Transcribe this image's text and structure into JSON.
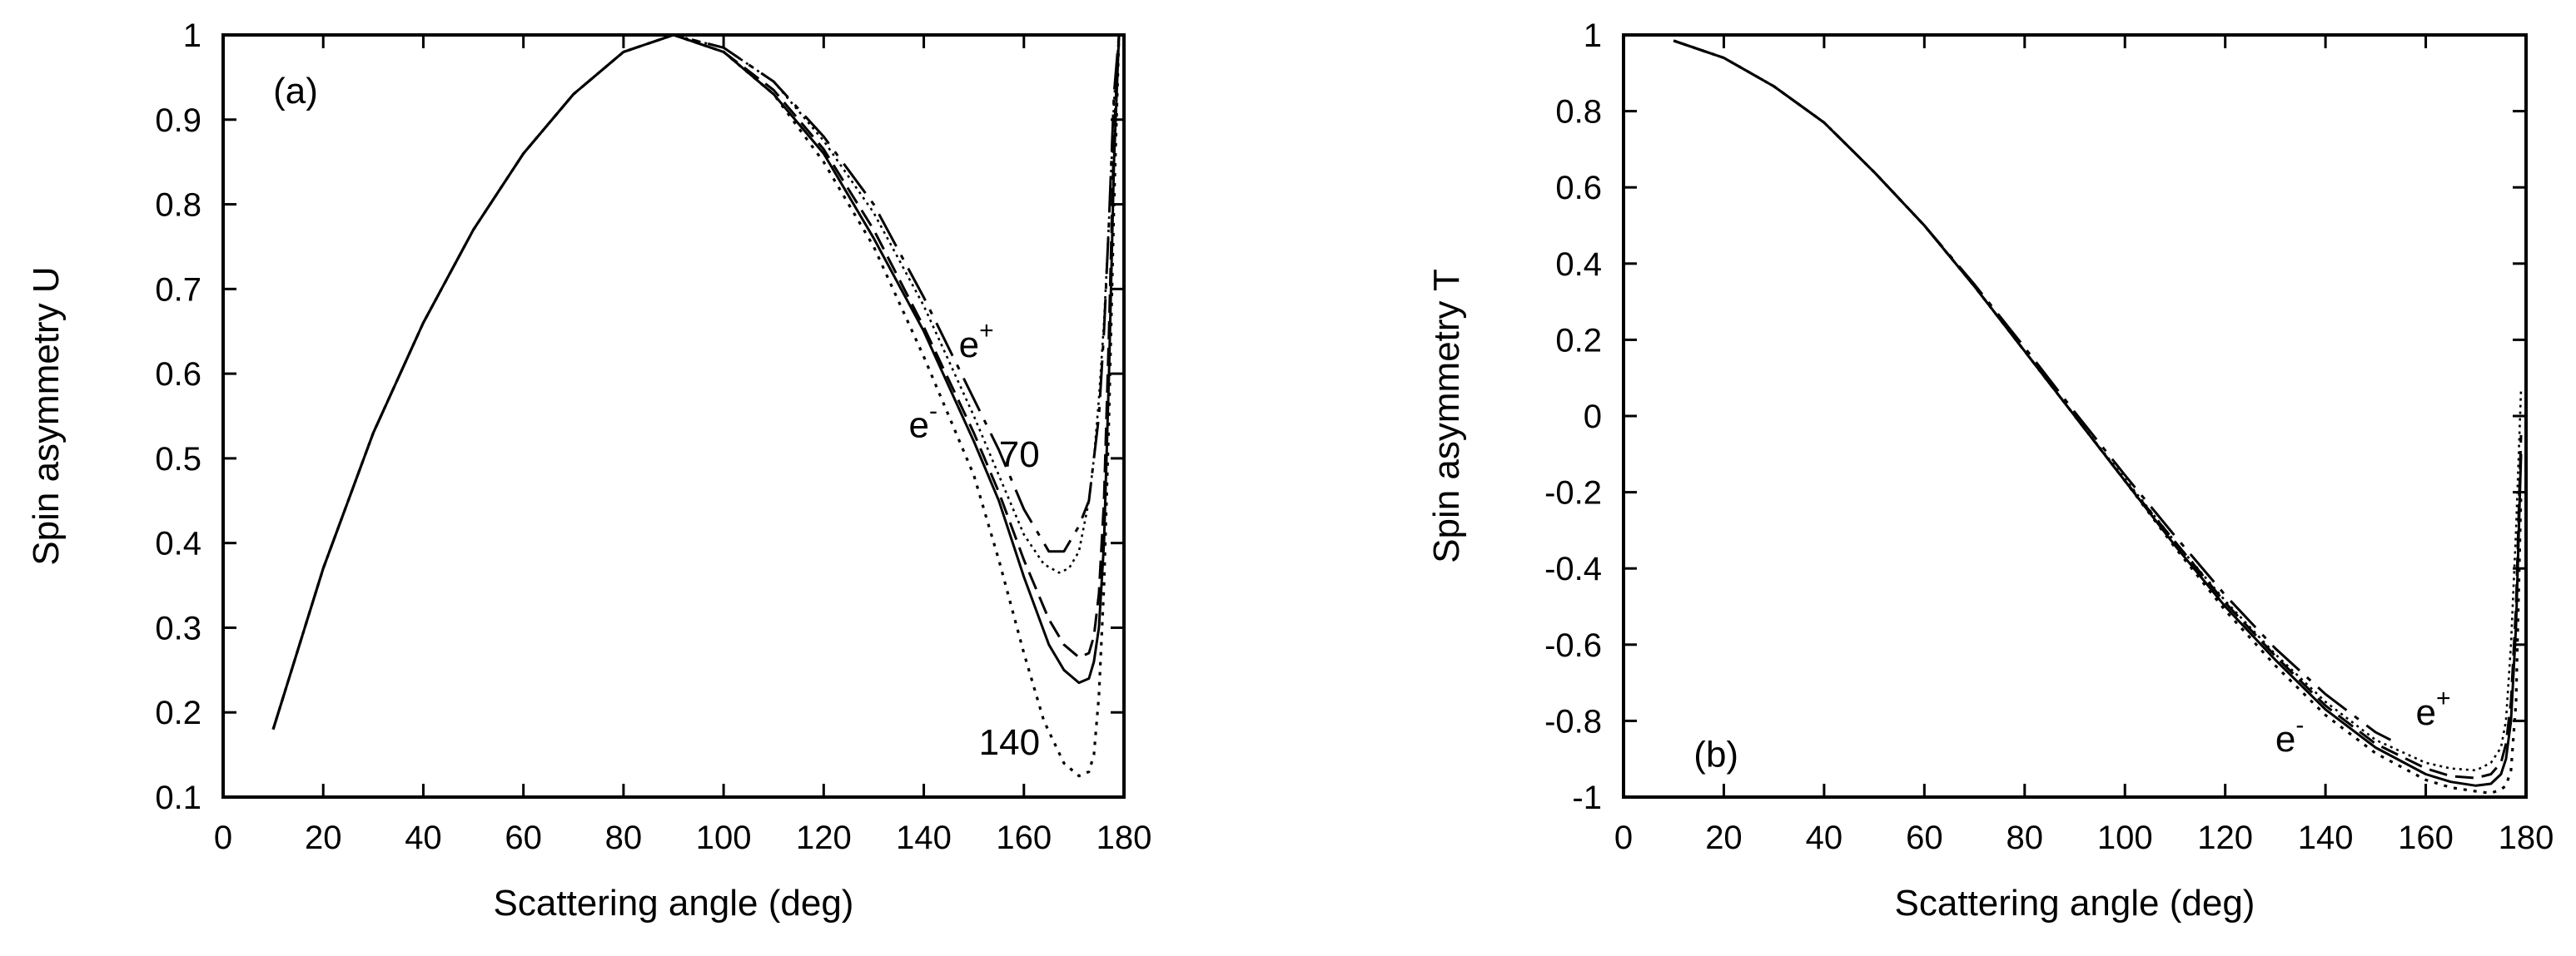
{
  "chart_data": [
    {
      "type": "line",
      "panel_label": "(a)",
      "xlabel": "Scattering angle  (deg)",
      "ylabel": "Spin asymmetry  U",
      "xlim": [
        0,
        180
      ],
      "ylim": [
        0.1,
        1
      ],
      "xticks": [
        0,
        20,
        40,
        60,
        80,
        100,
        120,
        140,
        160,
        180
      ],
      "yticks": [
        0.1,
        0.2,
        0.3,
        0.4,
        0.5,
        0.6,
        0.7,
        0.8,
        0.9,
        1
      ],
      "grid": false,
      "legend": "none",
      "annotations": [
        {
          "text": "e",
          "sup": "+",
          "x": 147,
          "y": 0.62
        },
        {
          "text": "e",
          "sup": "-",
          "x": 137,
          "y": 0.525
        },
        {
          "text": "70",
          "x": 155,
          "y": 0.49
        },
        {
          "text": "140",
          "x": 151,
          "y": 0.15
        }
      ],
      "series": [
        {
          "style": "solid",
          "x": [
            10,
            20,
            30,
            40,
            50,
            60,
            70,
            80,
            90,
            100,
            110,
            120,
            130,
            140,
            150,
            155,
            160,
            165,
            168,
            171,
            173,
            174,
            175,
            176,
            177,
            178,
            179
          ],
          "y": [
            0.18,
            0.37,
            0.53,
            0.66,
            0.77,
            0.86,
            0.93,
            0.98,
            1.0,
            0.98,
            0.93,
            0.86,
            0.76,
            0.65,
            0.52,
            0.45,
            0.36,
            0.28,
            0.25,
            0.235,
            0.24,
            0.26,
            0.3,
            0.4,
            0.6,
            0.85,
            1.0
          ]
        },
        {
          "style": "dashed",
          "x": [
            10,
            20,
            30,
            40,
            50,
            60,
            70,
            80,
            90,
            100,
            110,
            120,
            130,
            140,
            150,
            155,
            160,
            165,
            168,
            171,
            173,
            174,
            175,
            176,
            177,
            178,
            179
          ],
          "y": [
            0.18,
            0.37,
            0.53,
            0.66,
            0.77,
            0.86,
            0.93,
            0.98,
            1.0,
            0.98,
            0.935,
            0.865,
            0.77,
            0.655,
            0.53,
            0.46,
            0.38,
            0.31,
            0.28,
            0.265,
            0.27,
            0.29,
            0.34,
            0.45,
            0.65,
            0.88,
            1.0
          ]
        },
        {
          "style": "dotted",
          "x": [
            10,
            20,
            30,
            40,
            50,
            60,
            70,
            80,
            90,
            100,
            110,
            120,
            130,
            140,
            150,
            155,
            160,
            164,
            168,
            171,
            173,
            174,
            175,
            176,
            177,
            178,
            179
          ],
          "y": [
            0.18,
            0.37,
            0.53,
            0.66,
            0.77,
            0.86,
            0.93,
            0.98,
            1.0,
            0.98,
            0.93,
            0.85,
            0.75,
            0.62,
            0.48,
            0.38,
            0.27,
            0.19,
            0.14,
            0.125,
            0.13,
            0.15,
            0.22,
            0.35,
            0.55,
            0.8,
            1.0
          ]
        },
        {
          "style": "long-dash",
          "x": [
            10,
            20,
            30,
            40,
            50,
            60,
            70,
            80,
            90,
            100,
            110,
            120,
            130,
            140,
            150,
            155,
            160,
            165,
            168,
            171,
            173,
            174,
            175,
            176,
            177,
            178,
            179
          ],
          "y": [
            0.18,
            0.37,
            0.53,
            0.66,
            0.77,
            0.86,
            0.93,
            0.98,
            1.0,
            0.985,
            0.945,
            0.88,
            0.8,
            0.69,
            0.57,
            0.51,
            0.44,
            0.39,
            0.39,
            0.42,
            0.45,
            0.5,
            0.55,
            0.65,
            0.78,
            0.93,
            1.0
          ]
        },
        {
          "style": "fine-dotted",
          "x": [
            10,
            20,
            30,
            40,
            50,
            60,
            70,
            80,
            90,
            100,
            110,
            120,
            130,
            140,
            150,
            155,
            160,
            164,
            167,
            169,
            171,
            173,
            174,
            175,
            176,
            177,
            178,
            179
          ],
          "y": [
            0.18,
            0.37,
            0.53,
            0.66,
            0.77,
            0.86,
            0.93,
            0.98,
            1.0,
            0.985,
            0.945,
            0.875,
            0.79,
            0.68,
            0.55,
            0.48,
            0.41,
            0.375,
            0.365,
            0.37,
            0.39,
            0.45,
            0.5,
            0.57,
            0.66,
            0.78,
            0.92,
            1.0
          ]
        }
      ]
    },
    {
      "type": "line",
      "panel_label": "(b)",
      "xlabel": "Scattering angle  (deg)",
      "ylabel": "Spin asymmetry  T",
      "xlim": [
        0,
        180
      ],
      "ylim": [
        -1,
        1
      ],
      "xticks": [
        0,
        20,
        40,
        60,
        80,
        100,
        120,
        140,
        160,
        180
      ],
      "yticks": [
        -1,
        -0.8,
        -0.6,
        -0.4,
        -0.2,
        0,
        0.2,
        0.4,
        0.6,
        0.8,
        1
      ],
      "grid": false,
      "legend": "none",
      "annotations": [
        {
          "text": "e",
          "sup": "-",
          "x": 130,
          "y": -0.88
        },
        {
          "text": "e",
          "sup": "+",
          "x": 158,
          "y": -0.81
        }
      ],
      "series": [
        {
          "style": "solid",
          "x": [
            10,
            20,
            30,
            40,
            50,
            60,
            70,
            80,
            90,
            100,
            110,
            120,
            130,
            140,
            150,
            160,
            165,
            170,
            173,
            175,
            176,
            177,
            178,
            179
          ],
          "y": [
            0.985,
            0.94,
            0.865,
            0.77,
            0.64,
            0.5,
            0.34,
            0.17,
            0.0,
            -0.17,
            -0.34,
            -0.5,
            -0.64,
            -0.77,
            -0.87,
            -0.94,
            -0.96,
            -0.97,
            -0.965,
            -0.94,
            -0.9,
            -0.8,
            -0.55,
            -0.1
          ]
        },
        {
          "style": "dashed",
          "x": [
            10,
            20,
            30,
            40,
            50,
            60,
            70,
            80,
            90,
            100,
            110,
            120,
            130,
            140,
            150,
            160,
            165,
            170,
            173,
            175,
            176,
            177,
            178,
            179
          ],
          "y": [
            0.985,
            0.94,
            0.865,
            0.77,
            0.64,
            0.5,
            0.34,
            0.17,
            0.0,
            -0.17,
            -0.33,
            -0.49,
            -0.63,
            -0.76,
            -0.86,
            -0.925,
            -0.945,
            -0.95,
            -0.94,
            -0.91,
            -0.86,
            -0.75,
            -0.5,
            -0.05
          ]
        },
        {
          "style": "dotted",
          "x": [
            10,
            20,
            30,
            40,
            50,
            60,
            70,
            80,
            90,
            100,
            110,
            120,
            130,
            140,
            150,
            160,
            165,
            170,
            173,
            175,
            176,
            177,
            178,
            179
          ],
          "y": [
            0.985,
            0.94,
            0.865,
            0.77,
            0.64,
            0.5,
            0.34,
            0.17,
            0.0,
            -0.17,
            -0.345,
            -0.51,
            -0.655,
            -0.785,
            -0.885,
            -0.955,
            -0.975,
            -0.985,
            -0.99,
            -0.98,
            -0.97,
            -0.93,
            -0.75,
            -0.2
          ]
        },
        {
          "style": "long-dash",
          "x": [
            10,
            20,
            30,
            40,
            50,
            60,
            70,
            80,
            90,
            100,
            110,
            120,
            130,
            140,
            150,
            153
          ],
          "y": [
            0.985,
            0.94,
            0.865,
            0.77,
            0.64,
            0.5,
            0.345,
            0.18,
            0.01,
            -0.155,
            -0.315,
            -0.47,
            -0.61,
            -0.73,
            -0.83,
            -0.85
          ]
        },
        {
          "style": "fine-dotted",
          "x": [
            10,
            20,
            30,
            40,
            50,
            60,
            70,
            80,
            90,
            100,
            110,
            120,
            130,
            140,
            150,
            160,
            165,
            170,
            173,
            175,
            176,
            177,
            178,
            179
          ],
          "y": [
            0.985,
            0.94,
            0.865,
            0.77,
            0.64,
            0.5,
            0.34,
            0.17,
            0.0,
            -0.165,
            -0.33,
            -0.485,
            -0.625,
            -0.75,
            -0.85,
            -0.91,
            -0.925,
            -0.93,
            -0.91,
            -0.87,
            -0.8,
            -0.6,
            -0.3,
            0.07
          ]
        }
      ]
    }
  ]
}
